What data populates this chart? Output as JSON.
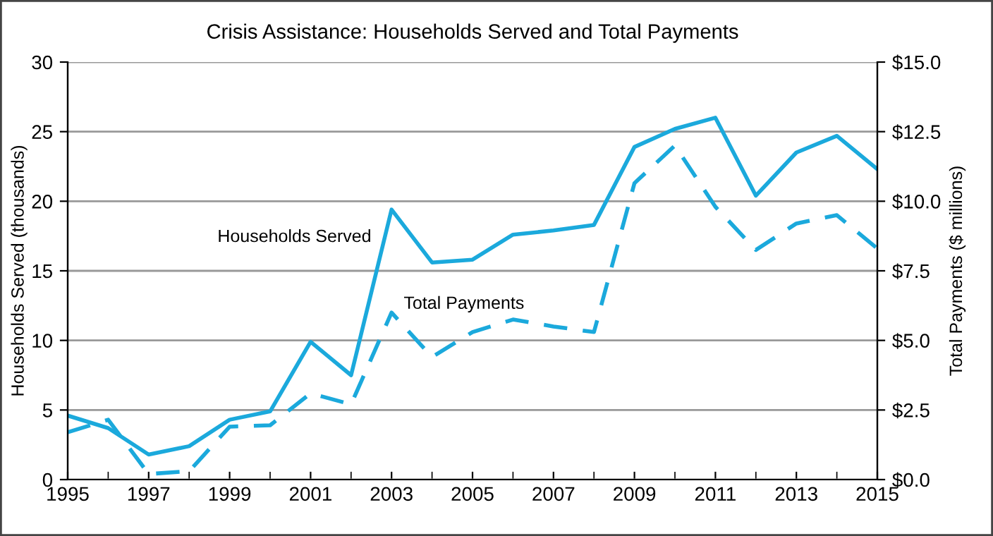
{
  "chart_data": {
    "type": "line",
    "title": "Crisis Assistance: Households Served and Total Payments",
    "ylabel": "Households Served (thousands)",
    "y2label": "Total Payments ($ millions)",
    "x": [
      1995,
      1996,
      1997,
      1998,
      1999,
      2000,
      2001,
      2002,
      2003,
      2004,
      2005,
      2006,
      2007,
      2008,
      2009,
      2010,
      2011,
      2012,
      2013,
      2014,
      2015
    ],
    "series": [
      {
        "name": "Households Served",
        "color": "#1ba9dc",
        "line_style": "solid",
        "values": [
          4.6,
          3.7,
          1.8,
          2.4,
          4.3,
          4.9,
          9.9,
          7.5,
          19.4,
          15.6,
          15.8,
          17.6,
          17.9,
          18.3,
          23.9,
          25.2,
          26.0,
          20.4,
          23.5,
          24.7,
          22.3
        ]
      },
      {
        "name": "Total Payments",
        "color": "#1ba9dc",
        "line_style": "dashed",
        "axis": "y2",
        "values": [
          1.7,
          2.15,
          0.2,
          0.3,
          1.9,
          1.95,
          3.1,
          2.7,
          6.0,
          4.4,
          5.3,
          5.75,
          5.5,
          5.3,
          10.65,
          12.0,
          9.8,
          8.25,
          9.2,
          9.5,
          8.3
        ]
      }
    ],
    "xlim": [
      1995,
      2015
    ],
    "xticks": [
      1995,
      1997,
      1999,
      2001,
      2003,
      2005,
      2007,
      2009,
      2011,
      2013,
      2015
    ],
    "ylim": [
      0,
      30
    ],
    "yticks": [
      0,
      5,
      10,
      15,
      20,
      25,
      30
    ],
    "y2lim": [
      0,
      15
    ],
    "y2ticks": [
      {
        "value": 0,
        "label": "$0.0"
      },
      {
        "value": 2.5,
        "label": "$2.5"
      },
      {
        "value": 5,
        "label": "$5.0"
      },
      {
        "value": 7.5,
        "label": "$7.5"
      },
      {
        "value": 10,
        "label": "$10.0"
      },
      {
        "value": 12.5,
        "label": "$12.5"
      },
      {
        "value": 15,
        "label": "$15.0"
      }
    ],
    "grid": "y",
    "legend": false
  }
}
